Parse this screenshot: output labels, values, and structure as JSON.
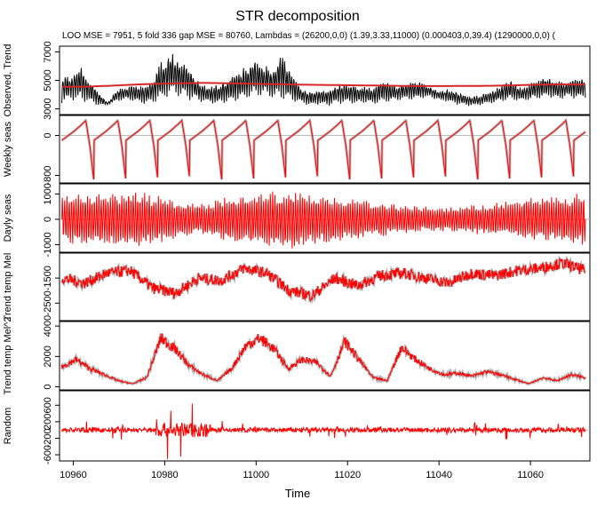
{
  "title": "STR decomposition",
  "subtitle": "LOO MSE = 7951, 5 fold 336 gap MSE = 80760, Lambdas = (26200,0,0) (1.39,3.33,11000) (0.000403,0,39.4) (1290000,0,0) (",
  "x_axis": {
    "label": "Time",
    "ticks": [
      "10960",
      "10980",
      "11000",
      "11020",
      "11040",
      "11060"
    ]
  },
  "colors": {
    "observed": "#000000",
    "trend": "#d62728",
    "component": "#ff0000",
    "band": "#999999",
    "zero_line": "#bbbbbb"
  },
  "chart_data": [
    {
      "type": "line",
      "panel": "observed",
      "ylabel": "Observed, Trend",
      "y_ticks": [
        "3000",
        "5000",
        "7000"
      ],
      "ylim": [
        2600,
        7400
      ],
      "x_range": [
        10957,
        11073
      ],
      "series": [
        {
          "values_sampled_by_day": [
            3400,
            5400,
            3600,
            5300,
            3500,
            6100,
            3400,
            5100,
            3200,
            4200,
            3300,
            3400,
            3500,
            4400,
            3600,
            4600,
            3500,
            4600,
            3300,
            4600,
            3400,
            5200,
            3600,
            6600,
            4000,
            6900,
            3800,
            6500,
            3600,
            5800,
            3500,
            4800,
            3400,
            4600,
            3300,
            4700,
            3400,
            5200,
            3500,
            5500,
            3700,
            6000,
            3800,
            6500,
            3900,
            6300,
            3700,
            5800,
            3600,
            6900,
            3500,
            5600,
            3400,
            4500,
            3200,
            4300,
            3300,
            4300,
            3200,
            4300,
            3300,
            4800,
            3400,
            4800,
            3300,
            4700,
            3400,
            4600,
            3300,
            4500,
            3400,
            5200,
            3500,
            4700,
            3600,
            4800,
            3600,
            4900,
            3700,
            4900,
            3800,
            4700,
            3600,
            4300,
            3500,
            4400,
            3300,
            4200,
            3200,
            4000,
            3200,
            3900,
            3300,
            4100,
            3400,
            4300,
            3500,
            4800,
            3600,
            5000,
            3500,
            4500,
            3600,
            4800,
            3700,
            5100,
            3800,
            5400,
            3600,
            5000,
            3800,
            4900,
            3700,
            5200,
            3800,
            5200
          ]
        },
        {
          "name": "trend",
          "values": [
            4550,
            4560,
            4620,
            4700,
            4760,
            4800,
            4820,
            4800,
            4760,
            4730,
            4700,
            4680,
            4660,
            4640,
            4620,
            4600,
            4600,
            4610,
            4620,
            4650,
            4700,
            4720,
            4700
          ]
        }
      ]
    },
    {
      "type": "line",
      "panel": "weekly",
      "ylabel": "Weekly seas",
      "y_ticks": [
        "-800",
        "0"
      ],
      "ylim": [
        -950,
        400
      ],
      "period_days": 7,
      "pattern": [
        -100,
        -40,
        20,
        80,
        150,
        220,
        300,
        -200,
        -900
      ]
    },
    {
      "type": "line",
      "panel": "daily",
      "ylabel": "Dayly seas",
      "y_ticks": [
        "-1000",
        "0",
        "1000"
      ],
      "ylim": [
        -1300,
        1400
      ],
      "amplitude_by_day": [
        900,
        1100,
        1000,
        1200,
        1000,
        800,
        600,
        900,
        1000,
        1100,
        1200,
        1000,
        900,
        800,
        700,
        600,
        500,
        500,
        600,
        700,
        800,
        900,
        1000,
        1100
      ]
    },
    {
      "type": "line",
      "panel": "trend_temp_mel",
      "ylabel": "Trend temp Mel",
      "y_ticks": [
        "-1500",
        "-2500"
      ],
      "ylim": [
        -3200,
        -500
      ],
      "values": [
        -1500,
        -1700,
        -1300,
        -1200,
        -1900,
        -2100,
        -1500,
        -1600,
        -1100,
        -1300,
        -2000,
        -2200,
        -1500,
        -1800,
        -1400,
        -1300,
        -1500,
        -1700,
        -1300,
        -1400,
        -1200,
        -1100,
        -900,
        -1200
      ]
    },
    {
      "type": "line",
      "panel": "trend_temp_mel_sq",
      "ylabel": "Trend temp Mel^2",
      "y_ticks": [
        "0",
        "2000",
        "4000"
      ],
      "ylim": [
        -200,
        4300
      ],
      "values": [
        1300,
        1800,
        1200,
        800,
        400,
        200,
        600,
        3200,
        2500,
        1400,
        800,
        400,
        1200,
        2700,
        3200,
        2500,
        1200,
        1800,
        1600,
        700,
        3000,
        1800,
        600,
        400,
        2600,
        1800,
        1200,
        800,
        900,
        700,
        1000,
        800,
        500,
        200,
        600,
        400,
        800,
        600
      ]
    },
    {
      "type": "line",
      "panel": "random",
      "ylabel": "Random",
      "y_ticks": [
        "-600",
        "-200",
        "200",
        "600"
      ],
      "ylim": [
        -750,
        950
      ],
      "values": [
        0
      ]
    }
  ]
}
